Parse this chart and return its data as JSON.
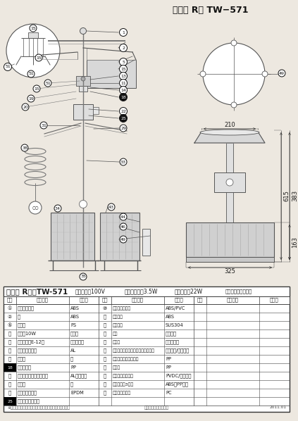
{
  "bg_color": "#ede8e0",
  "title": "かじか R　 TW−571",
  "table_title": "かじか R　　TW-571",
  "spec1": "定格電圧　100V",
  "spec2": "定格出力　㍄3.5W",
  "spec3": "消費電力　22W",
  "spec4": "タカラ工業株式会社",
  "col_head1": "番号",
  "col_head2": "品　　名",
  "col_head3": "材　質",
  "rows_col1": [
    [
      "①",
      "泵止めツマミ",
      "ABS"
    ],
    [
      "②",
      "泵",
      "ABS"
    ],
    [
      "⑤",
      "セード",
      "PS"
    ],
    [
      "⑪",
      "電球　10W",
      "ガラス"
    ],
    [
      "⑬",
      "ソケット（E-12）",
      "フェノール"
    ],
    [
      "⑭",
      "モーターファン",
      "AL"
    ],
    [
      "⑯",
      "泵支え",
      "鉄"
    ],
    [
      "⑱",
      "浸水給水器",
      "PP"
    ],
    [
      "⑲",
      "モーター（クマトリ型）",
      "AL・鉄・銅"
    ],
    [
      "⑳",
      "ベース",
      "鉄"
    ],
    [
      "⑵",
      "ジョイントゴム",
      "EPDM"
    ],
    [
      "⑸",
      "オーバーフロー穴",
      ""
    ]
  ],
  "rows_col2": [
    [
      "⑩",
      "ボディ＆パイプ",
      "ABS/PVC"
    ],
    [
      "⑪",
      "水切り板",
      "ABS"
    ],
    [
      "⑬",
      "シャフト",
      "SUS304"
    ],
    [
      "⑭",
      "ベラ",
      "ナイロン"
    ],
    [
      "⑮",
      "軸受け",
      "ジェラコン"
    ],
    [
      "⑯",
      "防湟スイッチ付き電源コードセット",
      "ビニール/ピアノ線"
    ],
    [
      "⑲",
      "本体支え付き漾過機構",
      "PP"
    ],
    [
      "⑳",
      "漾過槽",
      "PP"
    ],
    [
      "⑴",
      "漾過材（ダブル）",
      "PVDC/ナイロン"
    ],
    [
      "⑷",
      "重り　（部3ケ）",
      "ABS・PP・鉄"
    ],
    [
      "⑺",
      "ランプホルダー",
      "PC"
    ],
    [
      "",
      "",
      ""
    ]
  ],
  "footer": "※お断りなく材質・仕様を変更する場合がございます。",
  "footer2": "白ネキ・・・・非商品",
  "footer3": "2011.01",
  "dim_210": "210",
  "dim_615": "615",
  "dim_383": "383",
  "dim_163": "163",
  "dim_325": "325"
}
